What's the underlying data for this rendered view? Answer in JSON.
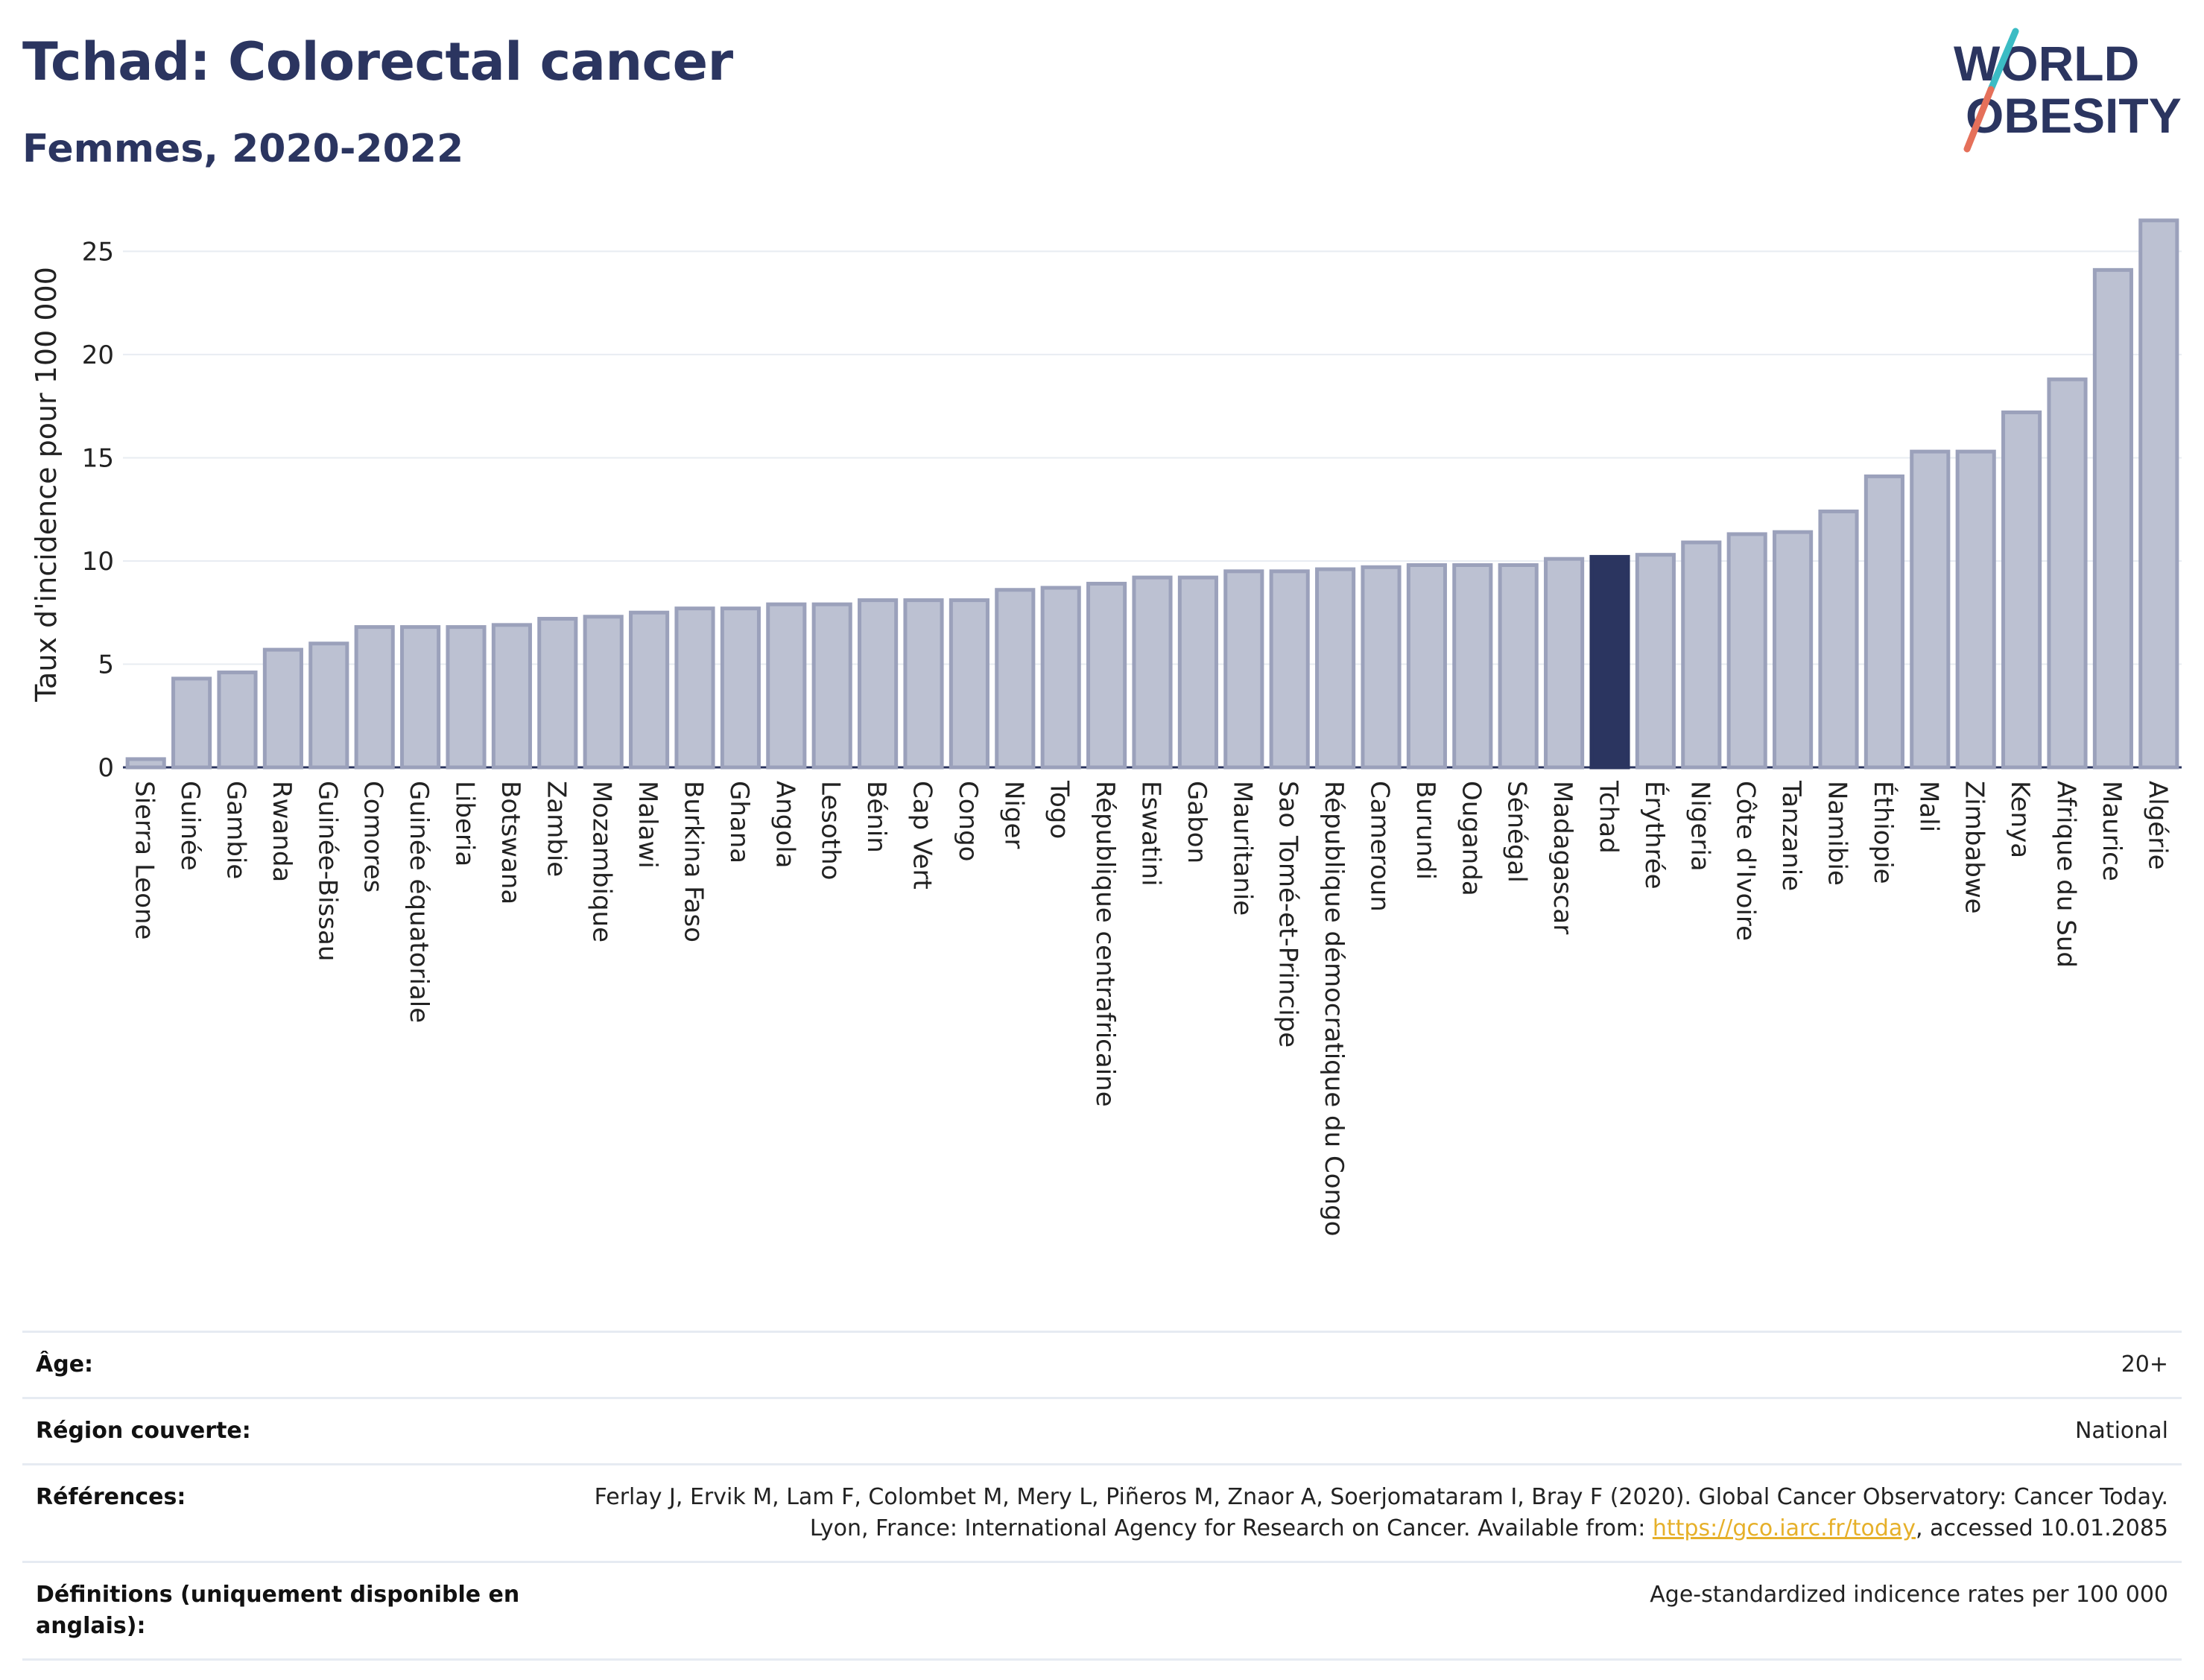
{
  "header": {
    "title": "Tchad: Colorectal cancer",
    "subtitle": "Femmes, 2020-2022"
  },
  "logo": {
    "line1": "WORLD",
    "line2": "OBESITY"
  },
  "colors": {
    "bar": "#bcc1d2",
    "bar_border": "#9ba1bb",
    "highlight": "#2b3560",
    "text": "#2b3560",
    "logo_teal": "#3bbcc4",
    "logo_coral": "#e5705a"
  },
  "chart_data": {
    "type": "bar",
    "ylabel": "Taux d'incidence pour 100 000",
    "ylim": [
      0,
      27
    ],
    "yticks": [
      0,
      5,
      10,
      15,
      20,
      25
    ],
    "highlight": "Tchad",
    "categories": [
      "Sierra Leone",
      "Guinée",
      "Gambie",
      "Rwanda",
      "Guinée-Bissau",
      "Comores",
      "Guinée équatoriale",
      "Liberia",
      "Botswana",
      "Zambie",
      "Mozambique",
      "Malawi",
      "Burkina Faso",
      "Ghana",
      "Angola",
      "Lesotho",
      "Bénin",
      "Cap Vert",
      "Congo",
      "Niger",
      "Togo",
      "République centrafricaine",
      "Eswatini",
      "Gabon",
      "Mauritanie",
      "Sao Tomé-et-Principe",
      "République démocratique du Congo",
      "Cameroun",
      "Burundi",
      "Ouganda",
      "Sénégal",
      "Madagascar",
      "Tchad",
      "Érythrée",
      "Nigeria",
      "Côte d'Ivoire",
      "Tanzanie",
      "Namibie",
      "Éthiopie",
      "Mali",
      "Zimbabwe",
      "Kenya",
      "Afrique du Sud",
      "Maurice",
      "Algérie"
    ],
    "values": [
      0.4,
      4.3,
      4.6,
      5.7,
      6.0,
      6.8,
      6.8,
      6.8,
      6.9,
      7.2,
      7.3,
      7.5,
      7.7,
      7.7,
      7.9,
      7.9,
      8.1,
      8.1,
      8.1,
      8.6,
      8.7,
      8.9,
      9.2,
      9.2,
      9.5,
      9.5,
      9.6,
      9.7,
      9.8,
      9.8,
      9.8,
      10.1,
      10.2,
      10.3,
      10.9,
      11.3,
      11.4,
      12.4,
      14.1,
      15.3,
      15.3,
      17.2,
      18.8,
      24.1,
      26.5
    ]
  },
  "info": [
    {
      "label": "Âge:",
      "value": "20+"
    },
    {
      "label": "Région couverte:",
      "value": "National"
    },
    {
      "label": "Références:",
      "value": "Ferlay J, Ervik M, Lam F, Colombet M, Mery L, Piñeros M, Znaor A, Soerjomataram I, Bray F (2020). Global Cancer Observatory: Cancer Today. Lyon, France: International Agency for Research on Cancer. Available from: ",
      "link": "https://gco.iarc.fr/today",
      "value_after": ", accessed 10.01.2085"
    },
    {
      "label": "Définitions (uniquement disponible en anglais):",
      "value": "Age-standardized indicence rates per 100 000"
    }
  ]
}
